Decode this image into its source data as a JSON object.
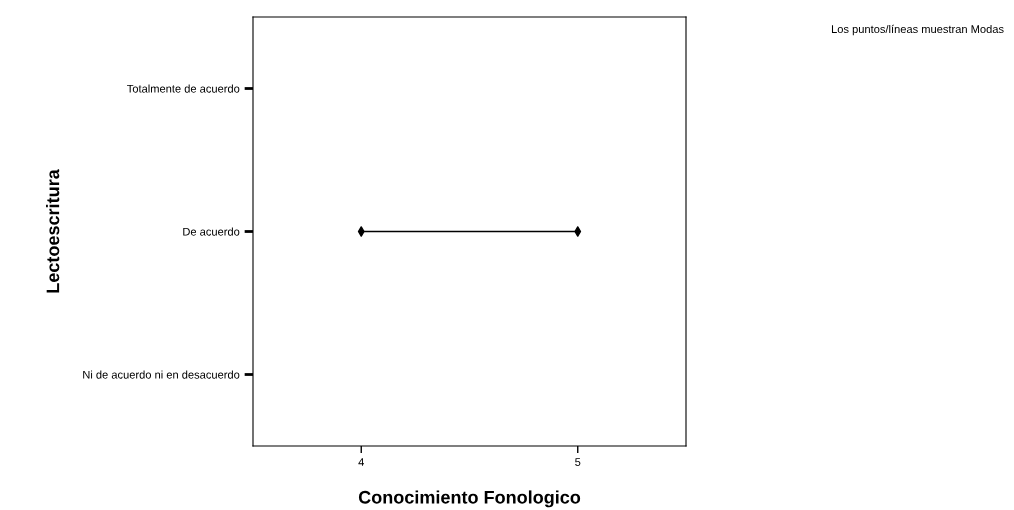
{
  "chart_data": {
    "type": "scatter",
    "orientation": "horizontal",
    "xlabel": "Conocimiento Fonologico",
    "ylabel": "Lectoescritura",
    "categories": [
      "Totalmente de acuerdo",
      "De acuerdo",
      "Ni de acuerdo ni en desacuerdo"
    ],
    "series": [
      {
        "values": [
          null,
          4,
          null
        ],
        "color": "#000000"
      },
      {
        "values": [
          null,
          5,
          null
        ],
        "color": "#000000"
      }
    ],
    "marker": "diamond",
    "line_style": "solid",
    "xlim": [
      3.5,
      5.5
    ],
    "xticks": [
      4,
      5
    ],
    "grid": false,
    "legend": false,
    "annotations": [
      "Los puntos/líneas muestran Modas"
    ]
  }
}
